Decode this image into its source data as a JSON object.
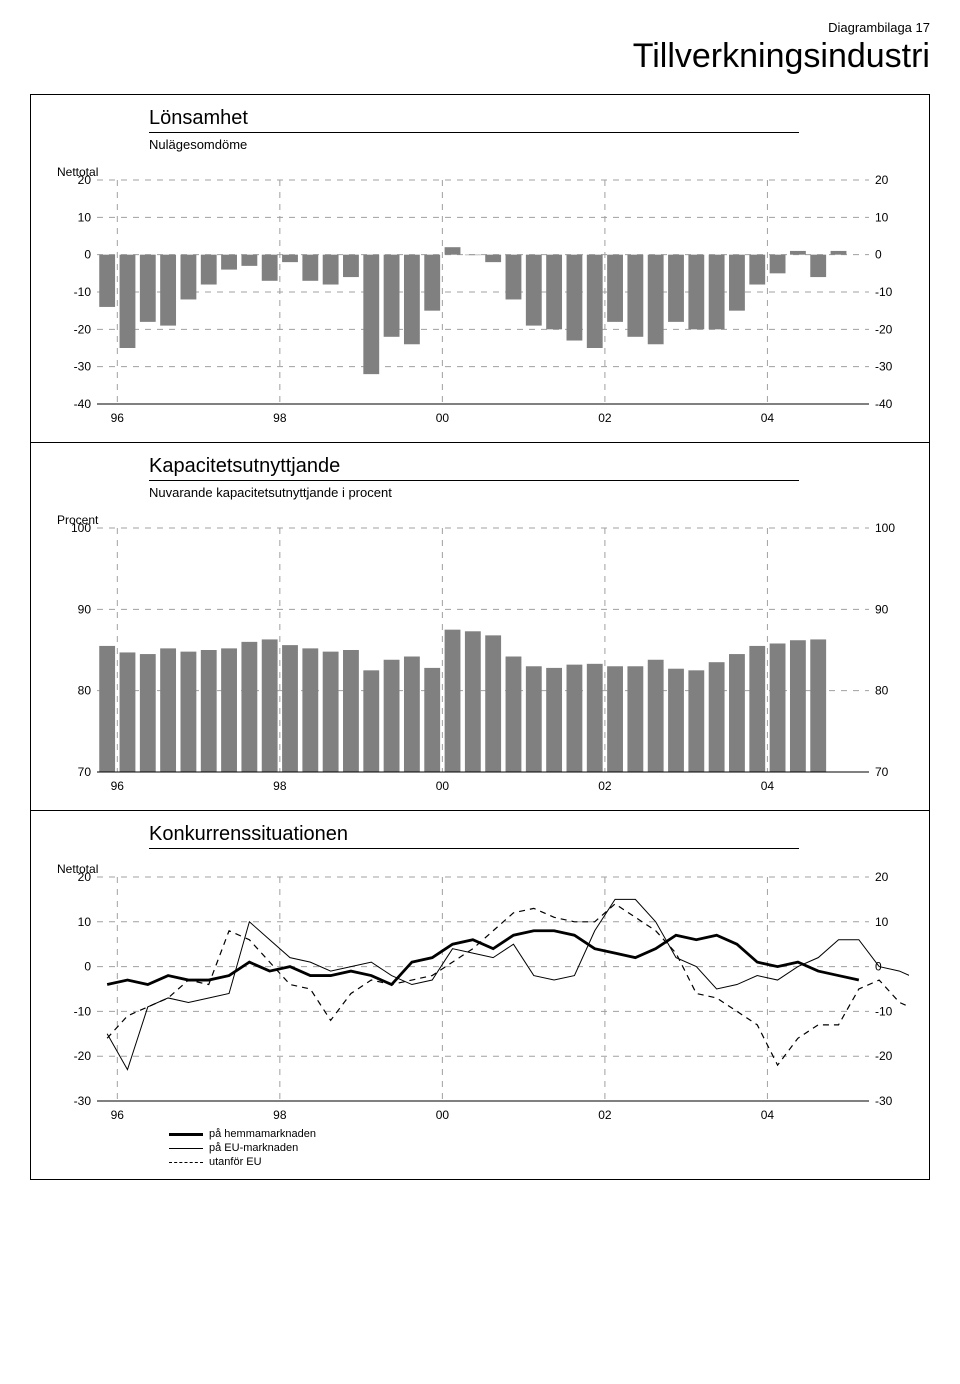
{
  "header_right": "Diagrambilaga  17",
  "main_title": "Tillverkningsindustri",
  "x_labels": [
    "96",
    "98",
    "00",
    "02",
    "04"
  ],
  "colors": {
    "bar": "#808080",
    "grid": "#a0a0a0",
    "axis": "#000000",
    "bg": "#ffffff",
    "line_thick": "#000000",
    "line_thin": "#000000",
    "line_dash": "#000000"
  },
  "chart1": {
    "title": "Lönsamhet",
    "subtitle": "Nulägesomdöme",
    "y_label": "Nettotal",
    "ymin": -40,
    "ymax": 20,
    "ytick_step": 10,
    "x_vlines": [
      1,
      9,
      17,
      25,
      33
    ],
    "bars": [
      -14,
      -25,
      -18,
      -19,
      -12,
      -8,
      -4,
      -3,
      -7,
      -2,
      -7,
      -8,
      -6,
      -32,
      -22,
      -24,
      -15,
      2,
      0,
      -2,
      -12,
      -19,
      -20,
      -23,
      -25,
      -18,
      -22,
      -24,
      -18,
      -20,
      -20,
      -15,
      -8,
      -5,
      1,
      -6,
      1
    ]
  },
  "chart2": {
    "title": "Kapacitetsutnyttjande",
    "subtitle": "Nuvarande kapacitetsutnyttjande i procent",
    "y_label": "Procent",
    "ymin": 70,
    "ymax": 100,
    "ytick_step": 10,
    "x_vlines": [
      1,
      9,
      17,
      25,
      33
    ],
    "bars": [
      85.5,
      84.7,
      84.5,
      85.2,
      84.8,
      85.0,
      85.2,
      86.0,
      86.3,
      85.6,
      85.2,
      84.8,
      85.0,
      82.5,
      83.8,
      84.2,
      82.8,
      87.5,
      87.3,
      86.8,
      84.2,
      83.0,
      82.8,
      83.2,
      83.3,
      83.0,
      83.0,
      83.8,
      82.7,
      82.5,
      83.5,
      84.5,
      85.5,
      85.8,
      86.2,
      86.3
    ]
  },
  "chart3": {
    "title": "Konkurrenssituationen",
    "y_label": "Nettotal",
    "ymin": -30,
    "ymax": 20,
    "ytick_step": 10,
    "x_vlines": [
      1,
      9,
      17,
      25,
      33
    ],
    "series_home": [
      -4,
      -3,
      -4,
      -2,
      -3,
      -3,
      -2,
      1,
      -1,
      0,
      -2,
      -2,
      -1,
      -2,
      -4,
      1,
      2,
      5,
      6,
      4,
      7,
      8,
      8,
      7,
      4,
      3,
      2,
      4,
      7,
      6,
      7,
      5,
      1,
      0,
      1,
      -1,
      -2,
      -3
    ],
    "series_eu": [
      -15,
      -23,
      -9,
      -7,
      -8,
      -7,
      -6,
      10,
      6,
      2,
      1,
      -1,
      0,
      1,
      -2,
      -4,
      -3,
      4,
      3,
      2,
      5,
      -2,
      -3,
      -2,
      8,
      15,
      15,
      10,
      2,
      0,
      -5,
      -4,
      -2,
      -3,
      0,
      2,
      6,
      6,
      0,
      -1,
      -3
    ],
    "series_noneu": [
      -16,
      -11,
      -9,
      -7,
      -3,
      -4,
      8,
      6,
      1,
      -4,
      -5,
      -12,
      -6,
      -3,
      -4,
      -3,
      -2,
      1,
      4,
      8,
      12,
      13,
      11,
      10,
      10,
      14,
      11,
      8,
      3,
      -6,
      -7,
      -10,
      -13,
      -22,
      -16,
      -13,
      -13,
      -5,
      -3,
      -8,
      -10,
      -10
    ],
    "legend": {
      "home": "på hemmamarknaden",
      "eu": "på EU-marknaden",
      "noneu": "utanför EU"
    }
  }
}
